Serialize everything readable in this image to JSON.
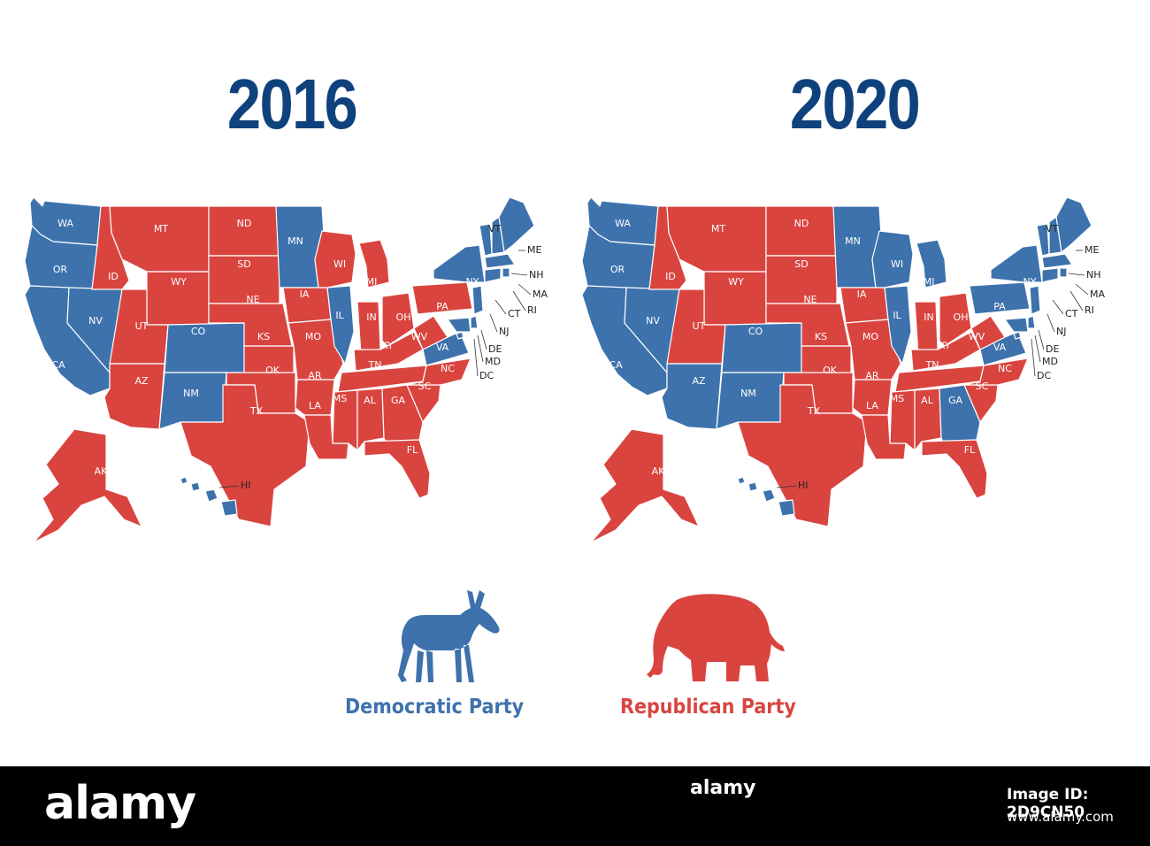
{
  "colors": {
    "dem": "#3D72AC",
    "rep": "#D9443F",
    "title": "#0F427D",
    "border": "#ffffff"
  },
  "maps": [
    {
      "year": "2016",
      "dem": [
        "WA",
        "OR",
        "CA",
        "NV",
        "CO",
        "NM",
        "MN",
        "IL",
        "NY",
        "VT",
        "ME",
        "NH",
        "MA",
        "RI",
        "CT",
        "NJ",
        "DE",
        "MD",
        "DC",
        "VA",
        "HI"
      ],
      "rep": [
        "MT",
        "ND",
        "SD",
        "WY",
        "ID",
        "UT",
        "AZ",
        "NE",
        "KS",
        "OK",
        "TX",
        "IA",
        "MO",
        "AR",
        "LA",
        "WI",
        "MI",
        "IN",
        "OH",
        "KY",
        "TN",
        "MS",
        "AL",
        "GA",
        "FL",
        "SC",
        "NC",
        "WV",
        "PA",
        "AK"
      ]
    },
    {
      "year": "2020",
      "dem": [
        "WA",
        "OR",
        "CA",
        "NV",
        "AZ",
        "CO",
        "NM",
        "MN",
        "WI",
        "MI",
        "IL",
        "PA",
        "NY",
        "VT",
        "ME",
        "NH",
        "MA",
        "RI",
        "CT",
        "NJ",
        "DE",
        "MD",
        "DC",
        "VA",
        "HI",
        "GA"
      ],
      "rep": [
        "MT",
        "ND",
        "SD",
        "WY",
        "ID",
        "UT",
        "NE",
        "KS",
        "OK",
        "TX",
        "IA",
        "MO",
        "AR",
        "LA",
        "IN",
        "OH",
        "KY",
        "TN",
        "MS",
        "AL",
        "FL",
        "SC",
        "NC",
        "WV",
        "AK"
      ]
    }
  ],
  "legend": {
    "dem_label": "Democratic Party",
    "rep_label": "Republican Party",
    "dem_icon": "donkey-icon",
    "rep_icon": "elephant-icon"
  },
  "watermark": {
    "brand": "alamy",
    "image_id_label": "Image ID: 2D9CN50",
    "site": "www.alamy.com"
  }
}
